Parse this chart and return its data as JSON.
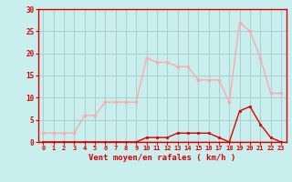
{
  "hours": [
    0,
    1,
    2,
    3,
    4,
    5,
    6,
    7,
    8,
    9,
    10,
    11,
    12,
    13,
    14,
    15,
    16,
    17,
    18,
    19,
    20,
    21,
    22,
    23
  ],
  "wind_avg": [
    0,
    0,
    0,
    0,
    0,
    0,
    0,
    0,
    0,
    0,
    1,
    1,
    1,
    2,
    2,
    2,
    2,
    1,
    0,
    7,
    8,
    4,
    1,
    0
  ],
  "wind_gust": [
    2,
    2,
    2,
    2,
    6,
    6,
    9,
    9,
    9,
    9,
    19,
    18,
    18,
    17,
    17,
    14,
    14,
    14,
    9,
    27,
    25,
    19,
    11,
    11
  ],
  "color_avg": "#dd0000",
  "color_gust": "#ffaaaa",
  "bg_color": "#c8eeee",
  "grid_color": "#aacccc",
  "xlabel": "Vent moyen/en rafales ( km/h )",
  "ylim": [
    0,
    30
  ],
  "yticks": [
    0,
    5,
    10,
    15,
    20,
    25,
    30
  ]
}
